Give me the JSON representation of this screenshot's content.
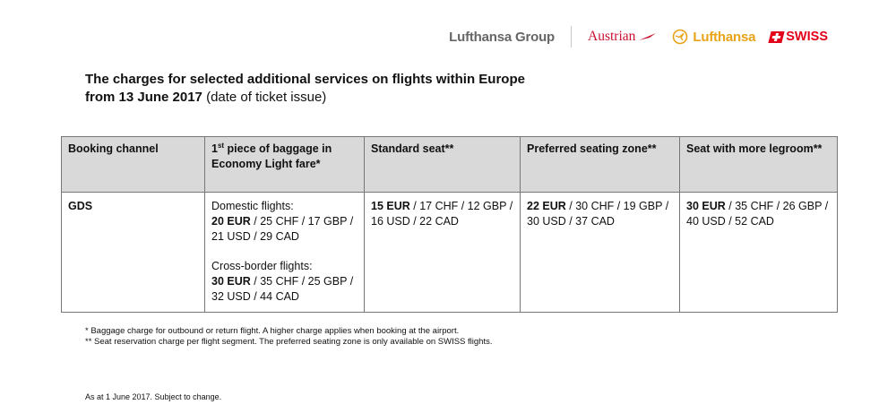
{
  "logos": {
    "group": "Lufthansa Group",
    "austrian": "Austrian",
    "lufthansa": "Lufthansa",
    "swiss": "SWISS"
  },
  "title": {
    "line1": "The charges for selected additional services on flights within Europe",
    "line2_bold": "from 13 June 2017",
    "line2_normal": " (date of ticket issue)"
  },
  "table": {
    "headers": {
      "booking_channel": "Booking channel",
      "baggage_pre": "1",
      "baggage_sup": "st",
      "baggage_post": " piece of baggage in Economy Light fare*",
      "standard_seat": "Standard seat**",
      "preferred_zone": "Preferred seating zone**",
      "more_legroom": "Seat with more legroom**"
    },
    "row": {
      "channel": "GDS",
      "domestic_label": "Domestic flights:",
      "domestic_bold": "20 EUR",
      "domestic_rest": " / 25 CHF / 17 GBP / 21 USD / 29 CAD",
      "cross_label": "Cross-border flights:",
      "cross_bold": "30 EUR",
      "cross_rest": " / 35 CHF / 25 GBP / 32 USD / 44 CAD",
      "standard_bold": "15 EUR",
      "standard_rest": " / 17 CHF / 12 GBP / 16 USD / 22 CAD",
      "preferred_bold": "22 EUR",
      "preferred_rest": " / 30 CHF / 19 GBP / 30 USD / 37 CAD",
      "legroom_bold": "30 EUR",
      "legroom_rest": " / 35 CHF / 26 GBP / 40 USD / 52 CAD"
    }
  },
  "footnotes": [
    "* Baggage charge for outbound or return flight. A higher charge applies when booking at the airport.",
    "** Seat reservation charge per flight segment. The preferred seating zone is only available on SWISS flights."
  ],
  "as_at": "As at 1 June 2017. Subject to change."
}
